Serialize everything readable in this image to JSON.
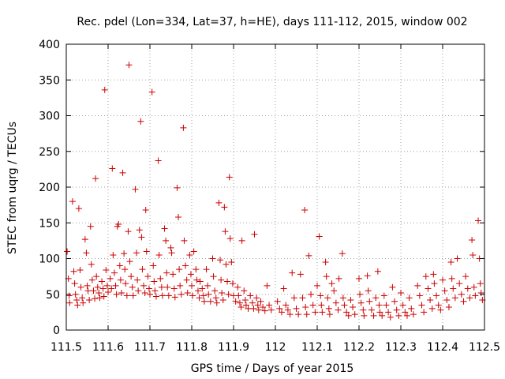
{
  "chart_data": {
    "type": "scatter",
    "title": "Rec. pdel (Lon=334, Lat=37, h=HE), days 111-112, 2015, window 002",
    "xlabel": "GPS time / Days of year 2015",
    "ylabel": "STEC from uqrg / TECUs",
    "xlim": [
      111.5,
      112.5
    ],
    "ylim": [
      0,
      400
    ],
    "xticks": [
      "111.5",
      "111.6",
      "111.7",
      "111.8",
      "111.9",
      "112",
      "112.1",
      "112.2",
      "112.3",
      "112.4",
      "112.5"
    ],
    "yticks": [
      "0",
      "50",
      "100",
      "150",
      "200",
      "250",
      "300",
      "350",
      "400"
    ],
    "marker": "+",
    "series_color": "#cc0000",
    "grid": true,
    "legend": "none",
    "points": [
      [
        111.502,
        110
      ],
      [
        111.505,
        72
      ],
      [
        111.507,
        48
      ],
      [
        111.508,
        38
      ],
      [
        111.515,
        180
      ],
      [
        111.518,
        82
      ],
      [
        111.52,
        65
      ],
      [
        111.522,
        50
      ],
      [
        111.525,
        42
      ],
      [
        111.527,
        35
      ],
      [
        111.53,
        170
      ],
      [
        111.533,
        84
      ],
      [
        111.535,
        60
      ],
      [
        111.538,
        45
      ],
      [
        111.54,
        38
      ],
      [
        111.545,
        127
      ],
      [
        111.548,
        108
      ],
      [
        111.55,
        62
      ],
      [
        111.552,
        55
      ],
      [
        111.555,
        42
      ],
      [
        111.558,
        145
      ],
      [
        111.56,
        92
      ],
      [
        111.562,
        70
      ],
      [
        111.565,
        55
      ],
      [
        111.568,
        44
      ],
      [
        111.57,
        212
      ],
      [
        111.572,
        75
      ],
      [
        111.575,
        60
      ],
      [
        111.578,
        52
      ],
      [
        111.58,
        45
      ],
      [
        111.585,
        68
      ],
      [
        111.588,
        58
      ],
      [
        111.59,
        47
      ],
      [
        111.592,
        336
      ],
      [
        111.595,
        84
      ],
      [
        111.598,
        62
      ],
      [
        111.6,
        53
      ],
      [
        111.605,
        72
      ],
      [
        111.608,
        58
      ],
      [
        111.61,
        226
      ],
      [
        111.612,
        105
      ],
      [
        111.615,
        80
      ],
      [
        111.618,
        62
      ],
      [
        111.62,
        50
      ],
      [
        111.622,
        145
      ],
      [
        111.625,
        148
      ],
      [
        111.628,
        90
      ],
      [
        111.63,
        70
      ],
      [
        111.632,
        52
      ],
      [
        111.635,
        220
      ],
      [
        111.638,
        107
      ],
      [
        111.64,
        85
      ],
      [
        111.642,
        65
      ],
      [
        111.645,
        48
      ],
      [
        111.648,
        138
      ],
      [
        111.65,
        371
      ],
      [
        111.652,
        96
      ],
      [
        111.655,
        75
      ],
      [
        111.658,
        60
      ],
      [
        111.66,
        48
      ],
      [
        111.665,
        197
      ],
      [
        111.668,
        108
      ],
      [
        111.67,
        70
      ],
      [
        111.672,
        55
      ],
      [
        111.675,
        140
      ],
      [
        111.678,
        292
      ],
      [
        111.68,
        130
      ],
      [
        111.682,
        85
      ],
      [
        111.685,
        62
      ],
      [
        111.688,
        52
      ],
      [
        111.69,
        168
      ],
      [
        111.692,
        110
      ],
      [
        111.695,
        75
      ],
      [
        111.698,
        58
      ],
      [
        111.7,
        50
      ],
      [
        111.705,
        333
      ],
      [
        111.708,
        90
      ],
      [
        111.71,
        68
      ],
      [
        111.712,
        55
      ],
      [
        111.715,
        47
      ],
      [
        111.72,
        237
      ],
      [
        111.722,
        105
      ],
      [
        111.725,
        72
      ],
      [
        111.728,
        60
      ],
      [
        111.73,
        48
      ],
      [
        111.735,
        142
      ],
      [
        111.738,
        125
      ],
      [
        111.74,
        80
      ],
      [
        111.742,
        60
      ],
      [
        111.745,
        48
      ],
      [
        111.75,
        115
      ],
      [
        111.752,
        108
      ],
      [
        111.755,
        78
      ],
      [
        111.758,
        58
      ],
      [
        111.76,
        46
      ],
      [
        111.765,
        199
      ],
      [
        111.768,
        158
      ],
      [
        111.77,
        85
      ],
      [
        111.772,
        62
      ],
      [
        111.775,
        50
      ],
      [
        111.78,
        283
      ],
      [
        111.782,
        125
      ],
      [
        111.785,
        90
      ],
      [
        111.788,
        70
      ],
      [
        111.79,
        52
      ],
      [
        111.795,
        105
      ],
      [
        111.798,
        78
      ],
      [
        111.8,
        62
      ],
      [
        111.802,
        48
      ],
      [
        111.805,
        110
      ],
      [
        111.81,
        85
      ],
      [
        111.812,
        70
      ],
      [
        111.815,
        55
      ],
      [
        111.818,
        45
      ],
      [
        111.82,
        68
      ],
      [
        111.825,
        58
      ],
      [
        111.828,
        48
      ],
      [
        111.83,
        40
      ],
      [
        111.835,
        85
      ],
      [
        111.838,
        62
      ],
      [
        111.84,
        50
      ],
      [
        111.845,
        40
      ],
      [
        111.85,
        100
      ],
      [
        111.852,
        75
      ],
      [
        111.855,
        55
      ],
      [
        111.858,
        45
      ],
      [
        111.86,
        38
      ],
      [
        111.865,
        178
      ],
      [
        111.868,
        98
      ],
      [
        111.87,
        70
      ],
      [
        111.872,
        52
      ],
      [
        111.875,
        42
      ],
      [
        111.878,
        172
      ],
      [
        111.88,
        138
      ],
      [
        111.882,
        92
      ],
      [
        111.885,
        68
      ],
      [
        111.888,
        50
      ],
      [
        111.89,
        214
      ],
      [
        111.892,
        128
      ],
      [
        111.895,
        95
      ],
      [
        111.898,
        65
      ],
      [
        111.9,
        48
      ],
      [
        111.905,
        40
      ],
      [
        111.91,
        60
      ],
      [
        111.912,
        48
      ],
      [
        111.915,
        38
      ],
      [
        111.918,
        32
      ],
      [
        111.92,
        125
      ],
      [
        111.925,
        55
      ],
      [
        111.928,
        42
      ],
      [
        111.93,
        35
      ],
      [
        111.935,
        30
      ],
      [
        111.94,
        48
      ],
      [
        111.945,
        38
      ],
      [
        111.948,
        30
      ],
      [
        111.95,
        134
      ],
      [
        111.955,
        45
      ],
      [
        111.958,
        35
      ],
      [
        111.96,
        28
      ],
      [
        111.965,
        40
      ],
      [
        111.97,
        32
      ],
      [
        111.975,
        27
      ],
      [
        111.98,
        62
      ],
      [
        111.985,
        35
      ],
      [
        111.99,
        28
      ],
      [
        112.005,
        40
      ],
      [
        112.01,
        30
      ],
      [
        112.015,
        25
      ],
      [
        112.02,
        58
      ],
      [
        112.025,
        35
      ],
      [
        112.03,
        28
      ],
      [
        112.035,
        22
      ],
      [
        112.04,
        80
      ],
      [
        112.045,
        45
      ],
      [
        112.05,
        30
      ],
      [
        112.055,
        22
      ],
      [
        112.06,
        78
      ],
      [
        112.065,
        45
      ],
      [
        112.07,
        168
      ],
      [
        112.072,
        32
      ],
      [
        112.075,
        22
      ],
      [
        112.08,
        104
      ],
      [
        112.085,
        50
      ],
      [
        112.09,
        35
      ],
      [
        112.095,
        25
      ],
      [
        112.1,
        62
      ],
      [
        112.105,
        131
      ],
      [
        112.108,
        48
      ],
      [
        112.11,
        35
      ],
      [
        112.112,
        25
      ],
      [
        112.12,
        95
      ],
      [
        112.122,
        75
      ],
      [
        112.125,
        45
      ],
      [
        112.128,
        30
      ],
      [
        112.13,
        22
      ],
      [
        112.135,
        65
      ],
      [
        112.14,
        55
      ],
      [
        112.145,
        38
      ],
      [
        112.15,
        28
      ],
      [
        112.152,
        72
      ],
      [
        112.16,
        107
      ],
      [
        112.162,
        45
      ],
      [
        112.165,
        35
      ],
      [
        112.17,
        25
      ],
      [
        112.175,
        20
      ],
      [
        112.18,
        42
      ],
      [
        112.185,
        32
      ],
      [
        112.19,
        22
      ],
      [
        112.2,
        72
      ],
      [
        112.202,
        50
      ],
      [
        112.205,
        38
      ],
      [
        112.21,
        28
      ],
      [
        112.212,
        20
      ],
      [
        112.22,
        76
      ],
      [
        112.222,
        55
      ],
      [
        112.225,
        40
      ],
      [
        112.23,
        28
      ],
      [
        112.235,
        20
      ],
      [
        112.24,
        45
      ],
      [
        112.245,
        82
      ],
      [
        112.248,
        35
      ],
      [
        112.25,
        25
      ],
      [
        112.255,
        20
      ],
      [
        112.26,
        48
      ],
      [
        112.265,
        35
      ],
      [
        112.27,
        25
      ],
      [
        112.275,
        18
      ],
      [
        112.28,
        60
      ],
      [
        112.285,
        40
      ],
      [
        112.29,
        28
      ],
      [
        112.295,
        20
      ],
      [
        112.3,
        52
      ],
      [
        112.305,
        35
      ],
      [
        112.31,
        25
      ],
      [
        112.315,
        20
      ],
      [
        112.32,
        45
      ],
      [
        112.325,
        30
      ],
      [
        112.33,
        22
      ],
      [
        112.34,
        62
      ],
      [
        112.345,
        48
      ],
      [
        112.35,
        35
      ],
      [
        112.355,
        25
      ],
      [
        112.36,
        75
      ],
      [
        112.365,
        58
      ],
      [
        112.37,
        42
      ],
      [
        112.375,
        30
      ],
      [
        112.378,
        78
      ],
      [
        112.38,
        65
      ],
      [
        112.385,
        48
      ],
      [
        112.39,
        35
      ],
      [
        112.395,
        28
      ],
      [
        112.4,
        70
      ],
      [
        112.405,
        55
      ],
      [
        112.41,
        42
      ],
      [
        112.415,
        32
      ],
      [
        112.42,
        95
      ],
      [
        112.422,
        72
      ],
      [
        112.425,
        58
      ],
      [
        112.43,
        45
      ],
      [
        112.435,
        100
      ],
      [
        112.44,
        65
      ],
      [
        112.445,
        50
      ],
      [
        112.45,
        40
      ],
      [
        112.455,
        75
      ],
      [
        112.46,
        58
      ],
      [
        112.465,
        45
      ],
      [
        112.47,
        126
      ],
      [
        112.472,
        105
      ],
      [
        112.475,
        60
      ],
      [
        112.478,
        48
      ],
      [
        112.485,
        153
      ],
      [
        112.488,
        100
      ],
      [
        112.49,
        65
      ],
      [
        112.492,
        52
      ],
      [
        112.495,
        42
      ]
    ]
  }
}
